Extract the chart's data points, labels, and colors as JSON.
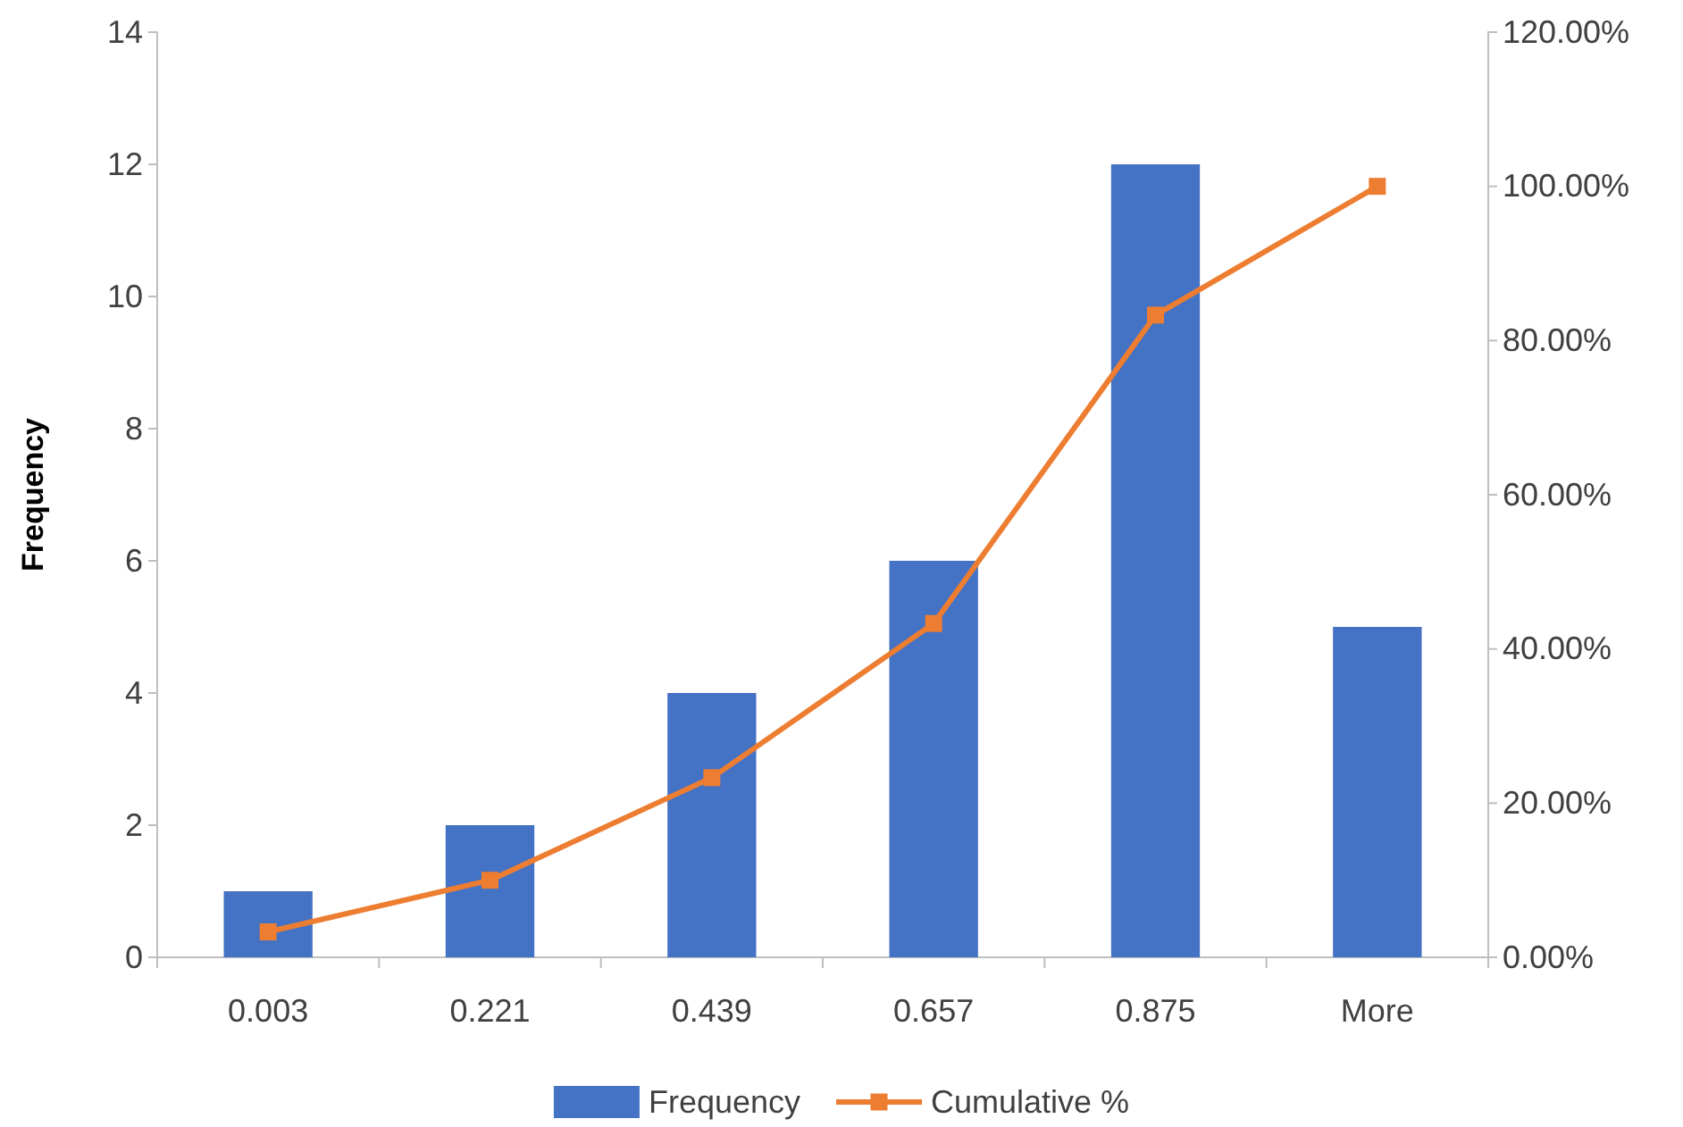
{
  "chart_data": {
    "type": "bar",
    "ylabel": "Frequency",
    "categories": [
      "0.003",
      "0.221",
      "0.439",
      "0.657",
      "0.875",
      "More"
    ],
    "series": [
      {
        "name": "Frequency",
        "color": "#4472c4",
        "values": [
          1,
          2,
          4,
          6,
          12,
          5
        ]
      },
      {
        "name": "Cumulative %",
        "type": "line",
        "axis": "y2",
        "color": "#ed7d31",
        "marker": "square",
        "values": [
          3.3,
          10,
          23.3,
          43.3,
          83.3,
          100
        ]
      }
    ],
    "ylim": [
      0,
      14
    ],
    "yticks": [
      0,
      2,
      4,
      6,
      8,
      10,
      12,
      14
    ],
    "y2lim": [
      0,
      120
    ],
    "y2ticks": [
      {
        "value": 0,
        "label": "0.00%"
      },
      {
        "value": 20,
        "label": "20.00%"
      },
      {
        "value": 40,
        "label": "40.00%"
      },
      {
        "value": 60,
        "label": "60.00%"
      },
      {
        "value": 80,
        "label": "80.00%"
      },
      {
        "value": 100,
        "label": "100.00%"
      },
      {
        "value": 120,
        "label": "120.00%"
      }
    ],
    "legend": "bottom",
    "grid": false
  }
}
